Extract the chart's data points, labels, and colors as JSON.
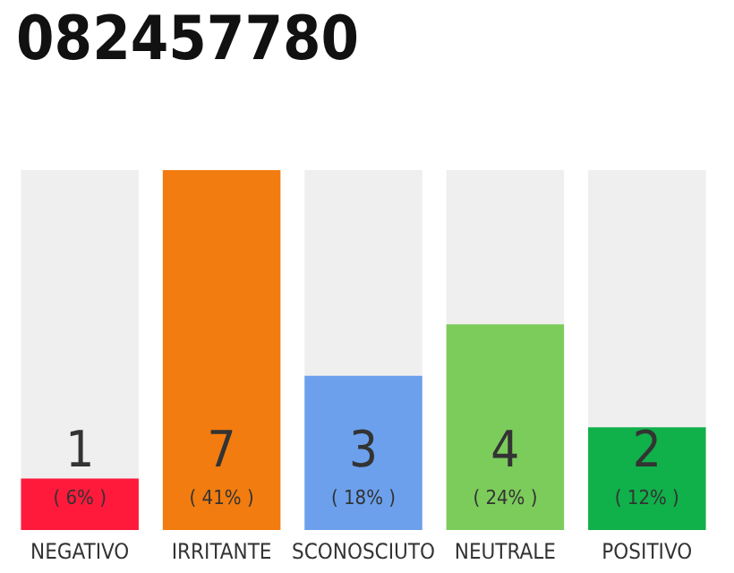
{
  "chart_data": {
    "type": "bar",
    "title": "082457780",
    "categories": [
      "NEGATIVO",
      "IRRITANTE",
      "SCONOSCIUTO",
      "NEUTRALE",
      "POSITIVO"
    ],
    "values": [
      1,
      7,
      3,
      4,
      2
    ],
    "colors": [
      "#ff1a3c",
      "#f27c0f",
      "#6ca0ec",
      "#7ccc5c",
      "#10b04a"
    ],
    "value_labels": [
      "1\n( 6% )",
      "7\n( 41% )",
      "3\n( 18% )",
      "4\n( 24% )",
      "2\n( 12% )"
    ]
  }
}
